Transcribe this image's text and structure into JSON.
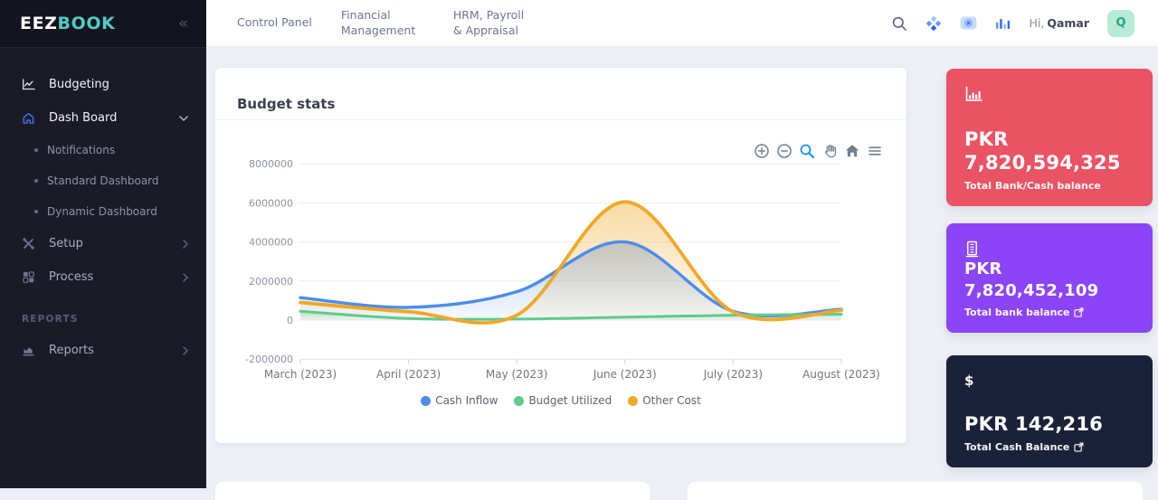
{
  "sidebar": {
    "logo_part1": "EEZ",
    "logo_part2": "BOOK",
    "logo_accent_color": "#4ecdc4",
    "items": [
      {
        "type": "item",
        "label": "Budgeting",
        "icon": "budgeting-chart-icon",
        "bright": true
      },
      {
        "type": "item",
        "label": "Dash Board",
        "icon": "home-icon",
        "chevron": "down",
        "bright": true,
        "expanded": true
      },
      {
        "type": "subitem",
        "label": "Notifications"
      },
      {
        "type": "subitem",
        "label": "Standard Dashboard"
      },
      {
        "type": "subitem",
        "label": "Dynamic Dashboard"
      },
      {
        "type": "item",
        "label": "Setup",
        "icon": "setup-tools-icon",
        "chevron": "right"
      },
      {
        "type": "item",
        "label": "Process",
        "icon": "process-grid-icon",
        "chevron": "right"
      },
      {
        "type": "section",
        "label": "REPORTS"
      },
      {
        "type": "item",
        "label": "Reports",
        "icon": "reports-chart-icon",
        "chevron": "right"
      }
    ]
  },
  "topbar": {
    "nav_items": [
      "Control Panel",
      "Financial Management",
      "HRM, Payroll & Appraisal"
    ],
    "icons": [
      "search-icon",
      "apps-icon",
      "video-tutorial-icon",
      "stats-icon"
    ],
    "greeting_prefix": "Hi,",
    "user_name": "Qamar",
    "avatar_initial": "Q",
    "avatar_bg": "#b7ebd5"
  },
  "budget_card": {
    "title": "Budget stats",
    "toolbar_icons": [
      "zoom-in-icon",
      "zoom-out-icon",
      "selection-zoom-icon",
      "pan-icon",
      "reset-zoom-icon",
      "menu-icon"
    ],
    "toolbar_active": "selection-zoom-icon"
  },
  "chart_data": {
    "type": "area",
    "curve": "smooth",
    "title": "Budget stats",
    "categories": [
      "March (2023)",
      "April (2023)",
      "May (2023)",
      "June (2023)",
      "July (2023)",
      "August (2023)"
    ],
    "series": [
      {
        "name": "Cash Inflow",
        "color": "#4e8cec",
        "values": [
          1150000,
          650000,
          1450000,
          4000000,
          450000,
          550000
        ]
      },
      {
        "name": "Budget Utilized",
        "color": "#5ecb8f",
        "values": [
          450000,
          80000,
          50000,
          150000,
          250000,
          300000
        ]
      },
      {
        "name": "Other Cost",
        "color": "#efa829",
        "values": [
          900000,
          430000,
          250000,
          6050000,
          420000,
          500000
        ]
      }
    ],
    "ylim": [
      -2000000,
      8000000
    ],
    "yticks": [
      8000000,
      6000000,
      4000000,
      2000000,
      0,
      -2000000
    ],
    "grid": true,
    "legend_position": "bottom"
  },
  "stat_cards": [
    {
      "icon": "bar-chart-axis-icon",
      "lines": [
        "PKR",
        "7,820,594,325"
      ],
      "label": "Total Bank/Cash balance",
      "bg": "#ea5364",
      "external_link": false
    },
    {
      "icon": "bank-icon",
      "lines": [
        "PKR 7,820,452,109"
      ],
      "label": "Total bank balance",
      "bg": "#8b45f7",
      "external_link": true
    },
    {
      "icon": "dollar-icon",
      "lines": [
        "PKR 142,216"
      ],
      "label": "Total Cash Balance",
      "bg": "#1b2138",
      "external_link": true
    }
  ]
}
